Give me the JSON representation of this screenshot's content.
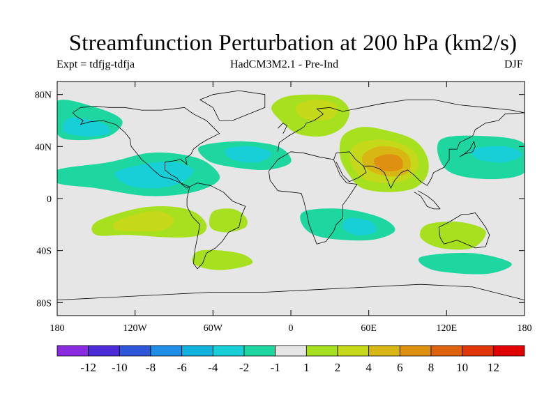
{
  "title": "Streamfunction Perturbation at 200 hPa (km2/s)",
  "subtitle_left": "Expt = tdfjg-tdfja",
  "subtitle_center": "HadCM3M2.1 - Pre-Ind",
  "subtitle_right": "DJF",
  "colors": {
    "background": "#e6e6e6",
    "coast": "#000000"
  },
  "map": {
    "lon_range": [
      -180,
      180
    ],
    "lat_range": [
      -90,
      90
    ],
    "lat_ticks": [
      {
        "value": 80,
        "label": "80N"
      },
      {
        "value": 40,
        "label": "40N"
      },
      {
        "value": 0,
        "label": "0"
      },
      {
        "value": -40,
        "label": "40S"
      },
      {
        "value": -80,
        "label": "80S"
      }
    ],
    "lon_ticks": [
      {
        "value": -180,
        "label": "180"
      },
      {
        "value": -120,
        "label": "120W"
      },
      {
        "value": -60,
        "label": "60W"
      },
      {
        "value": 0,
        "label": "0"
      },
      {
        "value": 60,
        "label": "60E"
      },
      {
        "value": 120,
        "label": "120E"
      },
      {
        "value": 180,
        "label": "180"
      }
    ]
  },
  "colorbar": {
    "colors": [
      "#8a2be2",
      "#4b2ad8",
      "#2f56d8",
      "#1f8ee8",
      "#12b2e0",
      "#18cfd8",
      "#1ed6a0",
      "#e6e6e6",
      "#a6e01e",
      "#c6d81a",
      "#d8b614",
      "#e09010",
      "#e0620c",
      "#e03608",
      "#e00000"
    ],
    "labels": [
      "-12",
      "-10",
      "-8",
      "-6",
      "-4",
      "-2",
      "-1",
      "1",
      "2",
      "4",
      "6",
      "8",
      "10",
      "12"
    ]
  },
  "fields": [
    {
      "id": "sam-positive",
      "color": "#a6e01e",
      "points": [
        [
          -150,
          -18
        ],
        [
          -120,
          -8
        ],
        [
          -95,
          -6
        ],
        [
          -75,
          -10
        ],
        [
          -65,
          -20
        ],
        [
          -70,
          -28
        ],
        [
          -90,
          -30
        ],
        [
          -125,
          -28
        ],
        [
          -150,
          -28
        ]
      ]
    },
    {
      "id": "sam-positive-core",
      "color": "#c6d81a",
      "points": [
        [
          -135,
          -18
        ],
        [
          -115,
          -11
        ],
        [
          -100,
          -10
        ],
        [
          -90,
          -16
        ],
        [
          -98,
          -24
        ],
        [
          -120,
          -25
        ],
        [
          -135,
          -24
        ]
      ]
    },
    {
      "id": "atlantic-south-positive",
      "color": "#a6e01e",
      "points": [
        [
          -60,
          -10
        ],
        [
          -45,
          -8
        ],
        [
          -35,
          -14
        ],
        [
          -35,
          -22
        ],
        [
          -50,
          -26
        ],
        [
          -62,
          -22
        ]
      ]
    },
    {
      "id": "europe-positive",
      "color": "#a6e01e",
      "points": [
        [
          -15,
          70
        ],
        [
          -5,
          78
        ],
        [
          15,
          80
        ],
        [
          35,
          78
        ],
        [
          45,
          68
        ],
        [
          40,
          55
        ],
        [
          25,
          48
        ],
        [
          5,
          50
        ],
        [
          -8,
          60
        ]
      ]
    },
    {
      "id": "europe-core",
      "color": "#c6d81a",
      "points": [
        [
          5,
          72
        ],
        [
          20,
          76
        ],
        [
          35,
          72
        ],
        [
          32,
          62
        ],
        [
          18,
          60
        ],
        [
          6,
          64
        ]
      ]
    },
    {
      "id": "asia-positive",
      "color": "#a6e01e",
      "points": [
        [
          40,
          48
        ],
        [
          55,
          55
        ],
        [
          75,
          52
        ],
        [
          95,
          45
        ],
        [
          105,
          32
        ],
        [
          105,
          18
        ],
        [
          95,
          8
        ],
        [
          75,
          5
        ],
        [
          55,
          8
        ],
        [
          45,
          18
        ],
        [
          38,
          32
        ]
      ]
    },
    {
      "id": "asia-core1",
      "color": "#c6d81a",
      "points": [
        [
          48,
          40
        ],
        [
          62,
          45
        ],
        [
          80,
          44
        ],
        [
          95,
          36
        ],
        [
          98,
          24
        ],
        [
          88,
          14
        ],
        [
          70,
          12
        ],
        [
          55,
          16
        ],
        [
          46,
          28
        ]
      ]
    },
    {
      "id": "asia-core2",
      "color": "#d8b614",
      "points": [
        [
          56,
          34
        ],
        [
          68,
          40
        ],
        [
          84,
          38
        ],
        [
          92,
          30
        ],
        [
          90,
          20
        ],
        [
          78,
          17
        ],
        [
          64,
          20
        ],
        [
          56,
          26
        ]
      ]
    },
    {
      "id": "asia-core3",
      "color": "#e09010",
      "points": [
        [
          64,
          30
        ],
        [
          74,
          34
        ],
        [
          84,
          32
        ],
        [
          86,
          24
        ],
        [
          78,
          21
        ],
        [
          68,
          23
        ]
      ]
    },
    {
      "id": "pacific-negative",
      "color": "#1ed6a0",
      "points": [
        [
          -180,
          22
        ],
        [
          -140,
          28
        ],
        [
          -110,
          35
        ],
        [
          -85,
          34
        ],
        [
          -65,
          28
        ],
        [
          -55,
          15
        ],
        [
          -75,
          5
        ],
        [
          -110,
          2
        ],
        [
          -150,
          8
        ],
        [
          -180,
          12
        ]
      ]
    },
    {
      "id": "pacific-negative-core",
      "color": "#18cfd8",
      "points": [
        [
          -135,
          20
        ],
        [
          -110,
          27
        ],
        [
          -90,
          28
        ],
        [
          -75,
          22
        ],
        [
          -85,
          12
        ],
        [
          -105,
          8
        ],
        [
          -125,
          10
        ]
      ]
    },
    {
      "id": "na-negative",
      "color": "#1ed6a0",
      "points": [
        [
          -180,
          75
        ],
        [
          -150,
          70
        ],
        [
          -130,
          60
        ],
        [
          -140,
          48
        ],
        [
          -165,
          45
        ],
        [
          -180,
          50
        ]
      ]
    },
    {
      "id": "na-negative-core",
      "color": "#18cfd8",
      "points": [
        [
          -170,
          62
        ],
        [
          -145,
          58
        ],
        [
          -140,
          50
        ],
        [
          -160,
          48
        ],
        [
          -175,
          52
        ]
      ]
    },
    {
      "id": "atlantic-negative",
      "color": "#1ed6a0",
      "points": [
        [
          -70,
          40
        ],
        [
          -40,
          44
        ],
        [
          -10,
          40
        ],
        [
          0,
          28
        ],
        [
          -20,
          22
        ],
        [
          -50,
          25
        ],
        [
          -65,
          30
        ]
      ]
    },
    {
      "id": "atlantic-negative-core",
      "color": "#18cfd8",
      "points": [
        [
          -50,
          38
        ],
        [
          -30,
          40
        ],
        [
          -15,
          35
        ],
        [
          -25,
          28
        ],
        [
          -45,
          30
        ]
      ]
    },
    {
      "id": "indian-negative",
      "color": "#1ed6a0",
      "points": [
        [
          10,
          -10
        ],
        [
          40,
          -8
        ],
        [
          70,
          -15
        ],
        [
          80,
          -25
        ],
        [
          60,
          -32
        ],
        [
          25,
          -30
        ],
        [
          10,
          -22
        ]
      ]
    },
    {
      "id": "indian-negative-core",
      "color": "#18cfd8",
      "points": [
        [
          45,
          -15
        ],
        [
          62,
          -18
        ],
        [
          65,
          -26
        ],
        [
          50,
          -28
        ],
        [
          40,
          -22
        ]
      ]
    },
    {
      "id": "australia-positive",
      "color": "#a6e01e",
      "points": [
        [
          105,
          -20
        ],
        [
          130,
          -18
        ],
        [
          150,
          -25
        ],
        [
          140,
          -38
        ],
        [
          115,
          -38
        ],
        [
          100,
          -30
        ]
      ]
    },
    {
      "id": "westpac-negative",
      "color": "#1ed6a0",
      "points": [
        [
          115,
          45
        ],
        [
          150,
          48
        ],
        [
          180,
          42
        ],
        [
          180,
          20
        ],
        [
          150,
          15
        ],
        [
          120,
          22
        ]
      ]
    },
    {
      "id": "westpac-negative-core",
      "color": "#18cfd8",
      "points": [
        [
          140,
          38
        ],
        [
          165,
          40
        ],
        [
          178,
          34
        ],
        [
          165,
          28
        ],
        [
          145,
          30
        ]
      ]
    },
    {
      "id": "south-positive",
      "color": "#a6e01e",
      "points": [
        [
          -70,
          -40
        ],
        [
          -40,
          -42
        ],
        [
          -30,
          -50
        ],
        [
          -55,
          -55
        ],
        [
          -75,
          -50
        ]
      ]
    },
    {
      "id": "sh-negative",
      "color": "#1ed6a0",
      "points": [
        [
          100,
          -45
        ],
        [
          140,
          -42
        ],
        [
          170,
          -50
        ],
        [
          150,
          -58
        ],
        [
          110,
          -55
        ]
      ]
    }
  ],
  "coast": [
    [
      [
        -168,
        66
      ],
      [
        -162,
        70
      ],
      [
        -150,
        71
      ],
      [
        -140,
        70
      ],
      [
        -128,
        70
      ],
      [
        -115,
        68
      ],
      [
        -100,
        68
      ],
      [
        -90,
        69
      ],
      [
        -82,
        70
      ],
      [
        -75,
        65
      ],
      [
        -65,
        60
      ],
      [
        -60,
        55
      ],
      [
        -55,
        50
      ],
      [
        -65,
        45
      ],
      [
        -70,
        42
      ],
      [
        -75,
        38
      ],
      [
        -77,
        34
      ],
      [
        -81,
        31
      ],
      [
        -80,
        26
      ],
      [
        -82,
        28
      ],
      [
        -85,
        30
      ],
      [
        -90,
        29
      ],
      [
        -97,
        28
      ],
      [
        -97,
        22
      ],
      [
        -92,
        18
      ],
      [
        -88,
        16
      ],
      [
        -84,
        11
      ],
      [
        -80,
        8
      ],
      [
        -78,
        9
      ],
      [
        -85,
        12
      ],
      [
        -92,
        15
      ],
      [
        -100,
        17
      ],
      [
        -106,
        22
      ],
      [
        -110,
        26
      ],
      [
        -115,
        30
      ],
      [
        -118,
        34
      ],
      [
        -123,
        40
      ],
      [
        -124,
        46
      ],
      [
        -128,
        51
      ],
      [
        -135,
        57
      ],
      [
        -145,
        60
      ],
      [
        -155,
        59
      ],
      [
        -162,
        57
      ],
      [
        -160,
        60
      ],
      [
        -165,
        63
      ],
      [
        -168,
        66
      ]
    ],
    [
      [
        -78,
        9
      ],
      [
        -72,
        12
      ],
      [
        -62,
        10
      ],
      [
        -52,
        5
      ],
      [
        -45,
        -2
      ],
      [
        -35,
        -6
      ],
      [
        -38,
        -13
      ],
      [
        -40,
        -22
      ],
      [
        -48,
        -26
      ],
      [
        -53,
        -33
      ],
      [
        -58,
        -38
      ],
      [
        -65,
        -42
      ],
      [
        -68,
        -50
      ],
      [
        -72,
        -54
      ],
      [
        -75,
        -50
      ],
      [
        -74,
        -40
      ],
      [
        -72,
        -30
      ],
      [
        -70,
        -20
      ],
      [
        -76,
        -14
      ],
      [
        -80,
        -6
      ],
      [
        -80,
        0
      ],
      [
        -78,
        9
      ]
    ],
    [
      [
        -10,
        36
      ],
      [
        -9,
        43
      ],
      [
        -2,
        48
      ],
      [
        5,
        52
      ],
      [
        10,
        55
      ],
      [
        12,
        58
      ],
      [
        18,
        60
      ],
      [
        25,
        65
      ],
      [
        20,
        69
      ],
      [
        30,
        70
      ],
      [
        40,
        67
      ],
      [
        55,
        70
      ],
      [
        70,
        73
      ],
      [
        90,
        76
      ],
      [
        110,
        76
      ],
      [
        130,
        72
      ],
      [
        150,
        70
      ],
      [
        170,
        68
      ],
      [
        180,
        66
      ]
    ],
    [
      [
        -17,
        21
      ],
      [
        -16,
        14
      ],
      [
        -10,
        6
      ],
      [
        0,
        5
      ],
      [
        8,
        4
      ],
      [
        10,
        -2
      ],
      [
        12,
        -10
      ],
      [
        14,
        -20
      ],
      [
        18,
        -30
      ],
      [
        20,
        -35
      ],
      [
        27,
        -33
      ],
      [
        33,
        -25
      ],
      [
        35,
        -20
      ],
      [
        40,
        -15
      ],
      [
        40,
        -5
      ],
      [
        45,
        2
      ],
      [
        51,
        11
      ],
      [
        43,
        12
      ],
      [
        38,
        18
      ],
      [
        33,
        30
      ],
      [
        22,
        32
      ],
      [
        10,
        35
      ],
      [
        0,
        36
      ],
      [
        -10,
        30
      ],
      [
        -17,
        21
      ]
    ],
    [
      [
        33,
        30
      ],
      [
        35,
        35
      ],
      [
        45,
        36
      ],
      [
        50,
        30
      ],
      [
        56,
        25
      ],
      [
        58,
        20
      ],
      [
        52,
        16
      ],
      [
        45,
        13
      ],
      [
        40,
        18
      ],
      [
        35,
        28
      ]
    ],
    [
      [
        56,
        25
      ],
      [
        62,
        25
      ],
      [
        68,
        23
      ],
      [
        72,
        20
      ],
      [
        77,
        8
      ],
      [
        80,
        14
      ],
      [
        85,
        20
      ],
      [
        90,
        22
      ],
      [
        95,
        18
      ],
      [
        100,
        13
      ],
      [
        105,
        10
      ],
      [
        108,
        15
      ],
      [
        110,
        20
      ],
      [
        118,
        24
      ],
      [
        122,
        30
      ],
      [
        122,
        38
      ],
      [
        128,
        38
      ],
      [
        130,
        43
      ],
      [
        140,
        48
      ],
      [
        142,
        53
      ],
      [
        150,
        58
      ],
      [
        160,
        60
      ],
      [
        165,
        65
      ],
      [
        180,
        66
      ]
    ],
    [
      [
        114,
        -22
      ],
      [
        122,
        -18
      ],
      [
        132,
        -12
      ],
      [
        137,
        -12
      ],
      [
        142,
        -11
      ],
      [
        145,
        -15
      ],
      [
        150,
        -22
      ],
      [
        153,
        -28
      ],
      [
        150,
        -37
      ],
      [
        142,
        -38
      ],
      [
        135,
        -35
      ],
      [
        128,
        -32
      ],
      [
        118,
        -35
      ],
      [
        115,
        -30
      ],
      [
        114,
        -22
      ]
    ],
    [
      [
        95,
        5
      ],
      [
        100,
        2
      ],
      [
        105,
        -6
      ],
      [
        110,
        -8
      ],
      [
        115,
        -8
      ],
      [
        110,
        -2
      ],
      [
        105,
        2
      ],
      [
        98,
        6
      ]
    ],
    [
      [
        130,
        32
      ],
      [
        133,
        34
      ],
      [
        140,
        36
      ],
      [
        142,
        40
      ],
      [
        141,
        44
      ],
      [
        138,
        38
      ],
      [
        132,
        33
      ]
    ],
    [
      [
        -55,
        60
      ],
      [
        -45,
        60
      ],
      [
        -20,
        70
      ],
      [
        -20,
        80
      ],
      [
        -40,
        83
      ],
      [
        -60,
        80
      ],
      [
        -70,
        76
      ],
      [
        -60,
        70
      ],
      [
        -55,
        60
      ]
    ],
    [
      [
        -6,
        50
      ],
      [
        -3,
        56
      ],
      [
        -6,
        58
      ],
      [
        -10,
        54
      ]
    ],
    [
      [
        -180,
        -78
      ],
      [
        -140,
        -76
      ],
      [
        -100,
        -74
      ],
      [
        -60,
        -72
      ],
      [
        -20,
        -72
      ],
      [
        20,
        -70
      ],
      [
        60,
        -68
      ],
      [
        100,
        -66
      ],
      [
        140,
        -68
      ],
      [
        180,
        -78
      ]
    ]
  ]
}
